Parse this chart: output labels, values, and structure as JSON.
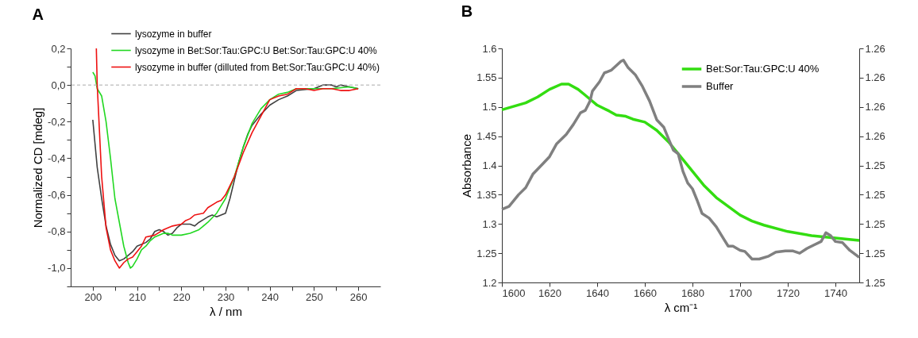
{
  "chart_data": [
    {
      "type": "line",
      "title": "A",
      "xlabel": "λ / nm",
      "ylabel": "Normalized CD [mdeg]",
      "xlim": [
        195,
        265
      ],
      "xticks": [
        200,
        {
          "value": 205,
          "label": null
        },
        210,
        {
          "value": 215,
          "label": null
        },
        220,
        {
          "value": 225,
          "label": null
        },
        230,
        {
          "value": 235,
          "label": null
        },
        240,
        {
          "value": 245,
          "label": null
        },
        250,
        {
          "value": 255,
          "label": null
        },
        260
      ],
      "ylim": [
        -1.1,
        0.2
      ],
      "yticks": [
        {
          "value": -1.1,
          "label": null
        },
        {
          "value": -1.0,
          "label": "-1,0"
        },
        {
          "value": -0.9,
          "label": null
        },
        {
          "value": -0.8,
          "label": "-0,8"
        },
        {
          "value": -0.7,
          "label": null
        },
        {
          "value": -0.6,
          "label": "-0,6"
        },
        {
          "value": -0.5,
          "label": null
        },
        {
          "value": -0.4,
          "label": "-0,4"
        },
        {
          "value": -0.3,
          "label": null
        },
        {
          "value": -0.2,
          "label": "-0,2"
        },
        {
          "value": -0.1,
          "label": null
        },
        {
          "value": 0,
          "label": "0,0"
        },
        {
          "value": 0.1,
          "label": null
        },
        {
          "value": 0.2,
          "label": "0,2"
        }
      ],
      "grid": false,
      "legend": "top",
      "line_style": "solid",
      "ref_lines": [
        {
          "axis": "y",
          "value": 0,
          "color": "#aaaaaa",
          "line_style": "dashed"
        }
      ],
      "series": [
        {
          "name": "lysozyme in buffer",
          "color": "#404040",
          "x": [
            200,
            201,
            202,
            203,
            204,
            205,
            206,
            207,
            208,
            209,
            210,
            212,
            213,
            214,
            215,
            216,
            217,
            218,
            219,
            220,
            222,
            223,
            224,
            226,
            227,
            228,
            229,
            230,
            231,
            232,
            233,
            234,
            235,
            236,
            238,
            240,
            242,
            244,
            246,
            250,
            252,
            254,
            255,
            256,
            258,
            260
          ],
          "values": [
            -0.19,
            -0.45,
            -0.62,
            -0.77,
            -0.87,
            -0.93,
            -0.96,
            -0.95,
            -0.93,
            -0.91,
            -0.88,
            -0.86,
            -0.84,
            -0.8,
            -0.79,
            -0.8,
            -0.82,
            -0.81,
            -0.78,
            -0.76,
            -0.76,
            -0.77,
            -0.75,
            -0.72,
            -0.71,
            -0.72,
            -0.71,
            -0.7,
            -0.62,
            -0.52,
            -0.42,
            -0.34,
            -0.27,
            -0.22,
            -0.16,
            -0.11,
            -0.08,
            -0.06,
            -0.03,
            -0.02,
            0.0,
            0.0,
            -0.01,
            0.0,
            -0.01,
            -0.02
          ]
        },
        {
          "name": "lysozyme in Bet:Sor:Tau:GPC:U Bet:Sor:Tau:GPC:U 40%",
          "color": "#22d822",
          "x": [
            200,
            200.5,
            201,
            202,
            203,
            204,
            205,
            206,
            207,
            208,
            208.5,
            209,
            210,
            211,
            212,
            213,
            214,
            216,
            217,
            218,
            220,
            222,
            224,
            226,
            228,
            230,
            232,
            234,
            236,
            238,
            240,
            242,
            244,
            246,
            248,
            250,
            254,
            258,
            260
          ],
          "values": [
            0.07,
            0.05,
            -0.02,
            -0.06,
            -0.2,
            -0.4,
            -0.62,
            -0.75,
            -0.88,
            -0.97,
            -1.0,
            -0.99,
            -0.95,
            -0.9,
            -0.88,
            -0.85,
            -0.83,
            -0.81,
            -0.81,
            -0.82,
            -0.82,
            -0.81,
            -0.79,
            -0.75,
            -0.7,
            -0.62,
            -0.5,
            -0.34,
            -0.21,
            -0.13,
            -0.08,
            -0.05,
            -0.04,
            -0.02,
            -0.02,
            -0.02,
            -0.02,
            -0.01,
            -0.02
          ]
        },
        {
          "name": "lysozyme in buffer (dilluted from Bet:Sor:Tau:GPC:U 40%)",
          "color": "#ee1111",
          "x": [
            200.8,
            201,
            202,
            203,
            204,
            205,
            206,
            207,
            208,
            209,
            210,
            211,
            212,
            214,
            216,
            218,
            220,
            221,
            222,
            223,
            225,
            226,
            228,
            229,
            230,
            232,
            234,
            236,
            238,
            240,
            242,
            244,
            246,
            248,
            250,
            252,
            254,
            256,
            258,
            260
          ],
          "values": [
            0.2,
            0.0,
            -0.5,
            -0.78,
            -0.9,
            -0.96,
            -1.0,
            -0.97,
            -0.95,
            -0.94,
            -0.91,
            -0.88,
            -0.83,
            -0.82,
            -0.79,
            -0.77,
            -0.76,
            -0.74,
            -0.73,
            -0.71,
            -0.7,
            -0.67,
            -0.64,
            -0.63,
            -0.6,
            -0.5,
            -0.37,
            -0.26,
            -0.17,
            -0.08,
            -0.06,
            -0.05,
            -0.02,
            -0.02,
            -0.03,
            -0.02,
            -0.02,
            -0.03,
            -0.03,
            -0.02
          ]
        }
      ]
    },
    {
      "type": "line",
      "title": "B",
      "xlabel": "λ cm⁻¹",
      "ylabel": "Absorbance",
      "xlim": [
        1600,
        1750
      ],
      "xticks": [
        1600,
        1620,
        1640,
        1660,
        1680,
        1700,
        1720,
        1740
      ],
      "ylim": [
        1.2,
        1.6
      ],
      "yticks": [
        1.2,
        1.25,
        1.3,
        1.35,
        1.4,
        1.45,
        1.5,
        1.55,
        1.6
      ],
      "y2lim": [
        1.2505,
        1.2585
      ],
      "y2ticks": [
        {
          "value": 1.2505,
          "label": "1.25"
        },
        {
          "value": 1.2515,
          "label": "1.25"
        },
        {
          "value": 1.2525,
          "label": "1.25"
        },
        {
          "value": 1.2535,
          "label": "1.25"
        },
        {
          "value": 1.2545,
          "label": "1.25"
        },
        {
          "value": 1.2555,
          "label": "1.26"
        },
        {
          "value": 1.2565,
          "label": "1.26"
        },
        {
          "value": 1.2575,
          "label": "1.26"
        },
        {
          "value": 1.2585,
          "label": "1.26"
        }
      ],
      "grid": false,
      "legend": "top right",
      "line_style": "solid",
      "series": [
        {
          "name": "Bet:Sor:Tau:GPC:U 40%",
          "color": "#33dd11",
          "x": [
            1600,
            1610,
            1615,
            1620,
            1625,
            1628,
            1632,
            1635,
            1640,
            1645,
            1648,
            1652,
            1655,
            1660,
            1665,
            1670,
            1675,
            1680,
            1685,
            1690,
            1695,
            1700,
            1705,
            1710,
            1720,
            1730,
            1740,
            1750
          ],
          "values": [
            1.495,
            1.507,
            1.517,
            1.53,
            1.539,
            1.539,
            1.53,
            1.52,
            1.503,
            1.493,
            1.486,
            1.484,
            1.479,
            1.474,
            1.46,
            1.44,
            1.415,
            1.39,
            1.365,
            1.345,
            1.33,
            1.315,
            1.305,
            1.298,
            1.287,
            1.28,
            1.276,
            1.272
          ]
        },
        {
          "name": "Buffer",
          "color": "#808080",
          "x": [
            1600,
            1603,
            1607,
            1610,
            1613,
            1617,
            1620,
            1623,
            1627,
            1630,
            1633,
            1635,
            1637,
            1638,
            1641,
            1643,
            1646,
            1650,
            1651,
            1653,
            1656,
            1659,
            1662,
            1665,
            1668,
            1670,
            1672,
            1674,
            1676,
            1678,
            1680,
            1682,
            1684,
            1687,
            1690,
            1693,
            1695,
            1697,
            1700,
            1702,
            1705,
            1708,
            1712,
            1715,
            1719,
            1722,
            1725,
            1728,
            1731,
            1734,
            1736,
            1738,
            1740,
            1743,
            1746,
            1750
          ],
          "values": [
            1.325,
            1.33,
            1.35,
            1.362,
            1.385,
            1.402,
            1.415,
            1.437,
            1.453,
            1.47,
            1.49,
            1.494,
            1.51,
            1.527,
            1.543,
            1.558,
            1.563,
            1.578,
            1.58,
            1.567,
            1.555,
            1.535,
            1.51,
            1.478,
            1.465,
            1.445,
            1.426,
            1.42,
            1.39,
            1.37,
            1.36,
            1.34,
            1.318,
            1.31,
            1.295,
            1.275,
            1.262,
            1.262,
            1.255,
            1.253,
            1.24,
            1.24,
            1.245,
            1.252,
            1.254,
            1.254,
            1.25,
            1.258,
            1.264,
            1.27,
            1.285,
            1.28,
            1.27,
            1.268,
            1.255,
            1.243
          ]
        }
      ]
    }
  ]
}
